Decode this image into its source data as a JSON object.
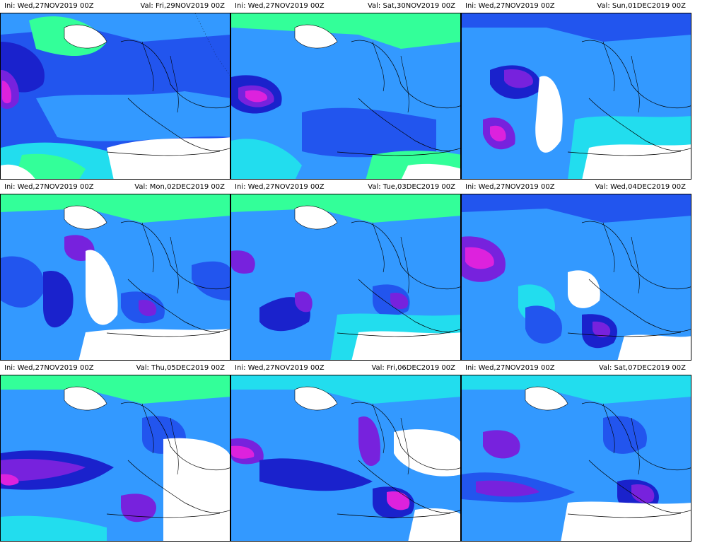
{
  "panels": [
    {
      "ini": "Ini: Wed,27NOV2019  00Z",
      "val": "Val: Fri,29NOV2019  00Z"
    },
    {
      "ini": "Ini: Wed,27NOV2019  00Z",
      "val": "Val: Sat,30NOV2019  00Z"
    },
    {
      "ini": "Ini: Wed,27NOV2019  00Z",
      "val": "Val: Sun,01DEC2019  00Z"
    },
    {
      "ini": "Ini: Wed,27NOV2019  00Z",
      "val": "Val: Mon,02DEC2019  00Z"
    },
    {
      "ini": "Ini: Wed,27NOV2019  00Z",
      "val": "Val: Tue,03DEC2019  00Z"
    },
    {
      "ini": "Ini: Wed,27NOV2019  00Z",
      "val": "Val: Wed,04DEC2019  00Z"
    },
    {
      "ini": "Ini: Wed,27NOV2019  00Z",
      "val": "Val: Thu,05DEC2019  00Z"
    },
    {
      "ini": "Ini: Wed,27NOV2019  00Z",
      "val": "Val: Fri,06DEC2019  00Z"
    },
    {
      "ini": "Ini: Wed,27NOV2019  00Z",
      "val": "Val: Sat,07DEC2019  00Z"
    }
  ],
  "colors": {
    "none": "#ffffff",
    "light": "#33ff99",
    "cyan": "#22ddee",
    "blue_light": "#3399ff",
    "blue": "#2255ee",
    "blue_dark": "#1a22cc",
    "purple": "#7722dd",
    "magenta": "#dd22dd"
  }
}
